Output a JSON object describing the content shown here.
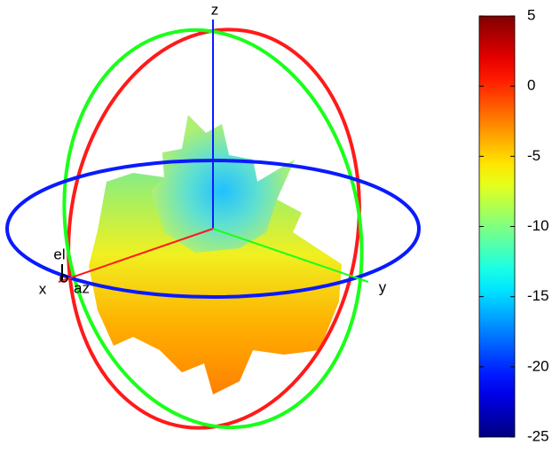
{
  "chart_data": {
    "type": "radiation-pattern",
    "axis_labels": {
      "x": "x",
      "y": "y",
      "z": "z",
      "el": "el",
      "az": "az"
    },
    "colorbar": {
      "clim": [
        -25,
        5
      ],
      "ticks": [
        5,
        0,
        -5,
        -10,
        -15,
        -20,
        -25
      ],
      "colormap": "jet"
    }
  }
}
